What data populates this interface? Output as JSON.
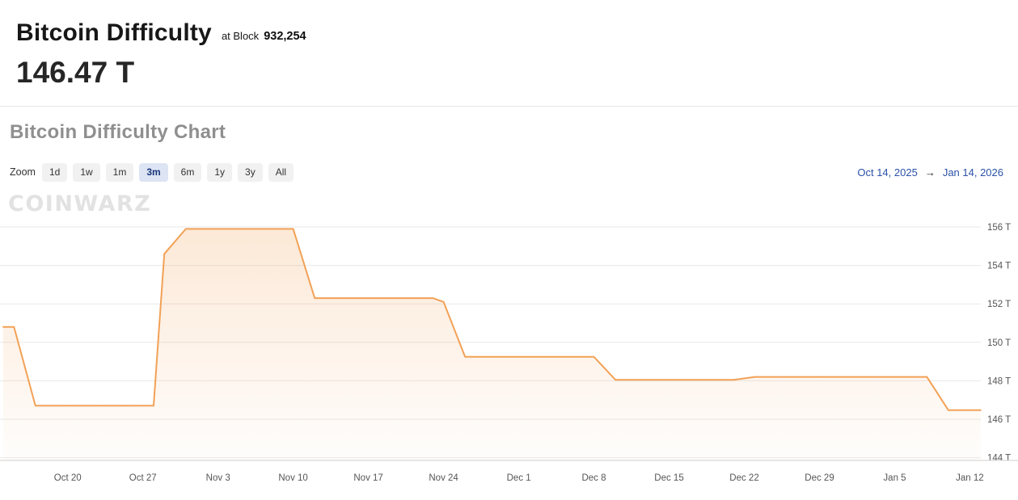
{
  "header": {
    "title": "Bitcoin Difficulty",
    "at_block_label": "at Block",
    "block_number": "932,254",
    "current_value": "146.47 T"
  },
  "chart_section": {
    "title": "Bitcoin Difficulty Chart",
    "zoom_label": "Zoom",
    "zoom_buttons": [
      "1d",
      "1w",
      "1m",
      "3m",
      "6m",
      "1y",
      "3y",
      "All"
    ],
    "active_zoom": "3m",
    "range_start": "Oct 14, 2025",
    "range_arrow": "→",
    "range_end": "Jan 14, 2026",
    "watermark": "COINWARZ"
  },
  "chart_data": {
    "type": "area",
    "title": "Bitcoin Difficulty Chart",
    "series_name": "Bitcoin Difficulty",
    "unit": "T",
    "x_range": [
      "2025-10-14",
      "2026-01-14"
    ],
    "ylim": [
      143.8,
      157
    ],
    "grid": true,
    "legend": false,
    "y_axis_position": "right",
    "y_ticks": [
      "156 T",
      "154 T",
      "152 T",
      "150 T",
      "148 T",
      "146 T",
      "144 T"
    ],
    "x_ticks": [
      {
        "label": "Oct 20",
        "date": "2025-10-20"
      },
      {
        "label": "Oct 27",
        "date": "2025-10-27"
      },
      {
        "label": "Nov 3",
        "date": "2025-11-03"
      },
      {
        "label": "Nov 10",
        "date": "2025-11-10"
      },
      {
        "label": "Nov 17",
        "date": "2025-11-17"
      },
      {
        "label": "Nov 24",
        "date": "2025-11-24"
      },
      {
        "label": "Dec 1",
        "date": "2025-12-01"
      },
      {
        "label": "Dec 8",
        "date": "2025-12-08"
      },
      {
        "label": "Dec 15",
        "date": "2025-12-15"
      },
      {
        "label": "Dec 22",
        "date": "2025-12-22"
      },
      {
        "label": "Dec 29",
        "date": "2025-12-29"
      },
      {
        "label": "Jan 5",
        "date": "2026-01-05"
      },
      {
        "label": "Jan 12",
        "date": "2026-01-12"
      }
    ],
    "points": [
      {
        "date": "2025-10-14",
        "value": 150.8
      },
      {
        "date": "2025-10-15",
        "value": 150.8
      },
      {
        "date": "2025-10-17",
        "value": 146.7
      },
      {
        "date": "2025-10-28",
        "value": 146.7
      },
      {
        "date": "2025-10-29",
        "value": 154.6
      },
      {
        "date": "2025-10-31",
        "value": 155.9
      },
      {
        "date": "2025-11-10",
        "value": 155.9
      },
      {
        "date": "2025-11-12",
        "value": 152.3
      },
      {
        "date": "2025-11-23",
        "value": 152.3
      },
      {
        "date": "2025-11-24",
        "value": 152.1
      },
      {
        "date": "2025-11-26",
        "value": 149.25
      },
      {
        "date": "2025-12-08",
        "value": 149.25
      },
      {
        "date": "2025-12-10",
        "value": 148.05
      },
      {
        "date": "2025-12-21",
        "value": 148.05
      },
      {
        "date": "2025-12-23",
        "value": 148.2
      },
      {
        "date": "2026-01-08",
        "value": 148.2
      },
      {
        "date": "2026-01-10",
        "value": 146.47
      },
      {
        "date": "2026-01-13",
        "value": 146.47
      }
    ],
    "colors": {
      "line": "#f2a156",
      "fill_top": "rgba(242,161,86,0.24)",
      "fill_bottom": "rgba(242,161,86,0.02)",
      "gridline": "#e8e8e8",
      "axis_line": "#cfcfcf",
      "tick_text": "#555555",
      "active_button_bg": "#dde4f3",
      "active_button_text": "#16357c",
      "range_link": "#2b52a8"
    }
  }
}
